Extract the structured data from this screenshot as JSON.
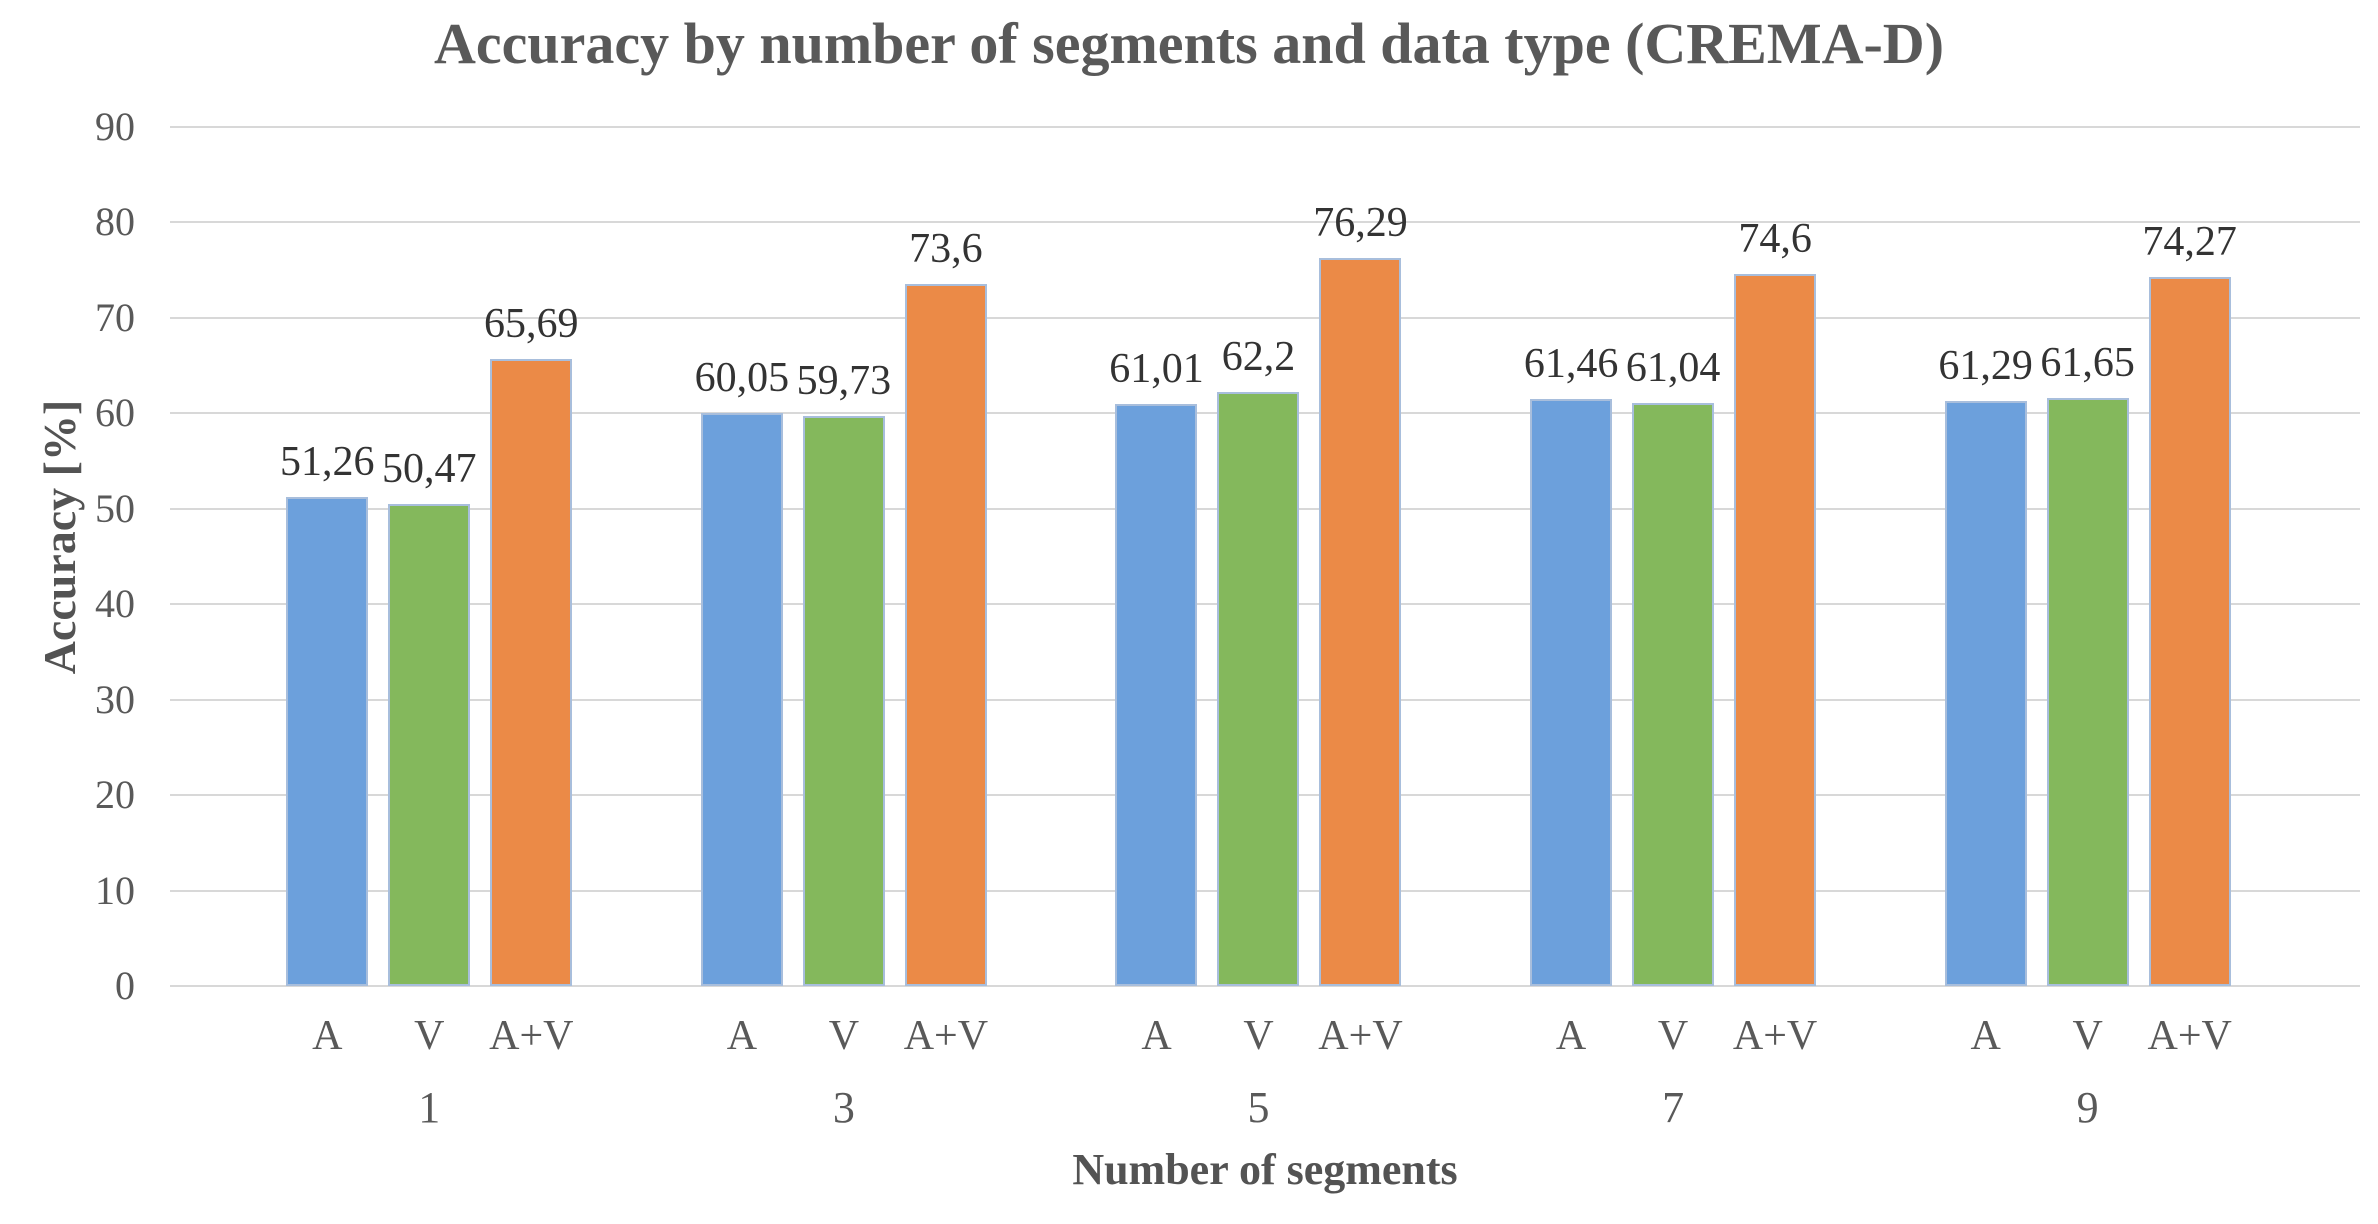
{
  "chart_data": {
    "type": "bar",
    "title": "Accuracy by number of segments and data type (CREMA-D)",
    "xlabel": "Number of segments",
    "ylabel": "Accuracy [%]",
    "ylim": [
      0,
      90
    ],
    "yticks": [
      0,
      10,
      20,
      30,
      40,
      50,
      60,
      70,
      80,
      90
    ],
    "grid": true,
    "legend": "none",
    "categories": [
      "1",
      "3",
      "5",
      "7",
      "9"
    ],
    "series": [
      {
        "name": "A",
        "color": "#6CA0DC",
        "values": [
          51.26,
          60.05,
          61.01,
          61.46,
          61.29
        ],
        "labels": [
          "51,26",
          "60,05",
          "61,01",
          "61,46",
          "61,29"
        ]
      },
      {
        "name": "V",
        "color": "#84B85C",
        "values": [
          50.47,
          59.73,
          62.2,
          61.04,
          61.65
        ],
        "labels": [
          "50,47",
          "59,73",
          "62,2",
          "61,04",
          "61,65"
        ]
      },
      {
        "name": "A+V",
        "color": "#EB8A47",
        "values": [
          65.69,
          73.6,
          76.29,
          74.6,
          74.27
        ],
        "labels": [
          "65,69",
          "73,6",
          "76,29",
          "74,6",
          "74,27"
        ]
      }
    ],
    "colors": {
      "bar_border": "#A8BEDC",
      "gridline": "#D8D8D8",
      "axis_text": "#595959",
      "data_label_text": "#333333",
      "title_text": "#595959"
    }
  }
}
